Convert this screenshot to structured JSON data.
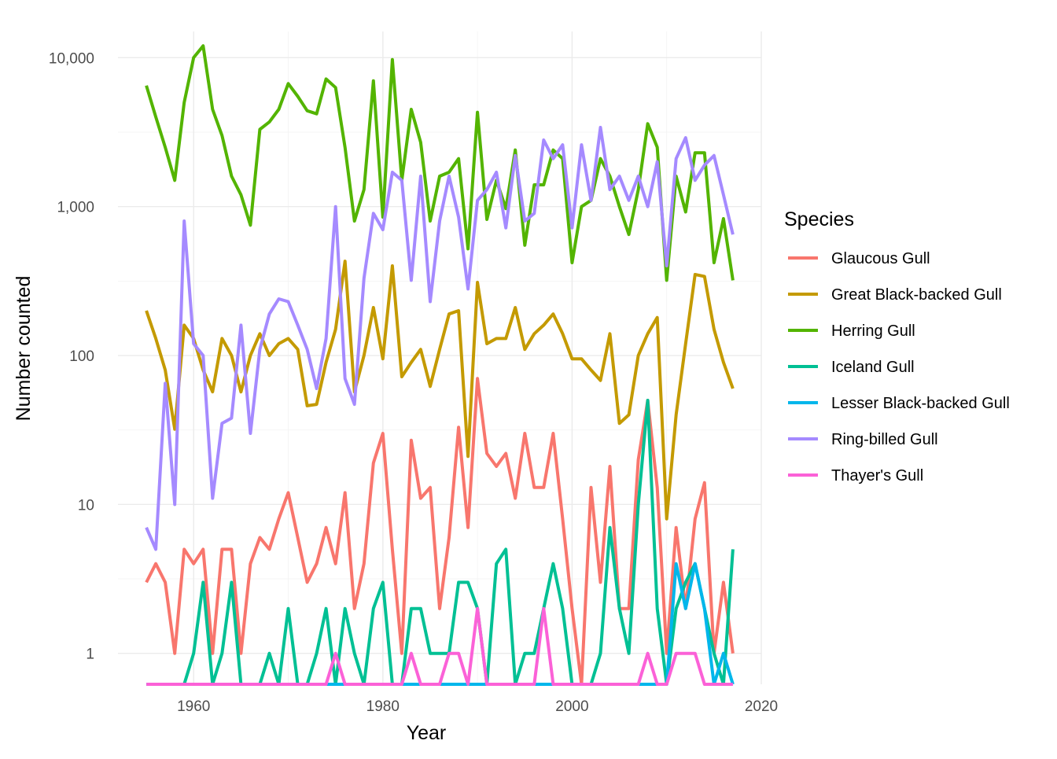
{
  "chart_data": {
    "type": "line",
    "xlabel": "Year",
    "ylabel": "Number counted",
    "yscale": "log10",
    "xlim": [
      1952,
      2020
    ],
    "ylim": [
      0.62,
      15000
    ],
    "x_ticks": [
      1960,
      1980,
      2000,
      2020
    ],
    "x_tick_labels": [
      "1960",
      "1980",
      "2000",
      "2020"
    ],
    "y_ticks": [
      1,
      10,
      100,
      1000,
      10000
    ],
    "y_tick_labels": [
      "1",
      "10",
      "100",
      "1,000",
      "10,000"
    ],
    "grid": true,
    "legend": {
      "title": "Species",
      "placement": "right"
    },
    "x": [
      1955,
      1956,
      1957,
      1958,
      1959,
      1960,
      1961,
      1962,
      1963,
      1964,
      1965,
      1966,
      1967,
      1968,
      1969,
      1970,
      1971,
      1972,
      1973,
      1974,
      1975,
      1976,
      1977,
      1978,
      1979,
      1980,
      1981,
      1982,
      1983,
      1984,
      1985,
      1986,
      1987,
      1988,
      1989,
      1990,
      1991,
      1992,
      1993,
      1994,
      1995,
      1996,
      1997,
      1998,
      1999,
      2000,
      2001,
      2002,
      2003,
      2004,
      2005,
      2006,
      2007,
      2008,
      2009,
      2010,
      2011,
      2012,
      2013,
      2014,
      2015,
      2016,
      2017
    ],
    "series": [
      {
        "name": "Glaucous Gull",
        "color": "#F8766D",
        "values": [
          3,
          4,
          3,
          1,
          5,
          4,
          5,
          1,
          5,
          5,
          1,
          4,
          6,
          5,
          8,
          12,
          6,
          3,
          4,
          7,
          4,
          12,
          2,
          4,
          19,
          30,
          5,
          1,
          27,
          11,
          13,
          2,
          6,
          33,
          7,
          70,
          22,
          18,
          22,
          11,
          30,
          13,
          13,
          30,
          8,
          2,
          0,
          13,
          3,
          18,
          2,
          2,
          20,
          50,
          13,
          1,
          7,
          2,
          8,
          14,
          1,
          3,
          1
        ]
      },
      {
        "name": "Great Black-backed Gull",
        "color": "#C49A00",
        "values": [
          200,
          130,
          80,
          32,
          160,
          130,
          80,
          57,
          130,
          100,
          57,
          100,
          140,
          100,
          120,
          130,
          110,
          46,
          47,
          90,
          150,
          430,
          57,
          100,
          210,
          95,
          400,
          72,
          90,
          110,
          62,
          110,
          190,
          200,
          21,
          310,
          120,
          130,
          130,
          210,
          110,
          140,
          160,
          190,
          140,
          95,
          95,
          80,
          68,
          140,
          35,
          40,
          100,
          140,
          180,
          8,
          40,
          120,
          350,
          340,
          150,
          90,
          60
        ]
      },
      {
        "name": "Herring Gull",
        "color": "#53B400",
        "values": [
          6500,
          4000,
          2500,
          1500,
          5000,
          10000,
          12000,
          4500,
          3000,
          1600,
          1200,
          750,
          3300,
          3700,
          4500,
          6700,
          5500,
          4400,
          4200,
          7200,
          6300,
          2500,
          800,
          1300,
          7000,
          850,
          9700,
          1500,
          4500,
          2700,
          800,
          1600,
          1700,
          2100,
          520,
          4300,
          820,
          1500,
          970,
          2400,
          550,
          1400,
          1400,
          2400,
          2100,
          420,
          1000,
          1100,
          2100,
          1600,
          1000,
          650,
          1300,
          3600,
          2500,
          320,
          1600,
          920,
          2300,
          2300,
          420,
          830,
          320
        ]
      },
      {
        "name": "Iceland Gull",
        "color": "#00C094",
        "values": [
          0,
          0,
          0,
          0,
          0,
          1,
          3,
          0,
          1,
          3,
          0,
          0,
          0,
          1,
          0,
          2,
          0,
          0,
          1,
          2,
          0,
          2,
          1,
          0,
          2,
          3,
          0,
          0,
          2,
          2,
          1,
          1,
          1,
          3,
          3,
          2,
          0,
          4,
          5,
          0,
          1,
          1,
          2,
          4,
          2,
          0,
          0,
          0,
          1,
          7,
          2,
          1,
          10,
          50,
          2,
          0,
          2,
          3,
          4,
          2,
          1,
          0,
          5
        ]
      },
      {
        "name": "Lesser Black-backed Gull",
        "color": "#00B6EB",
        "values": [
          0,
          0,
          0,
          0,
          0,
          0,
          0,
          0,
          0,
          0,
          0,
          0,
          0,
          0,
          0,
          0,
          0,
          0,
          0,
          0,
          0,
          0,
          0,
          0,
          0,
          0,
          0,
          0,
          0,
          0,
          0,
          0,
          0,
          0,
          0,
          0,
          0,
          0,
          0,
          0,
          0,
          0,
          0,
          0,
          0,
          0,
          0,
          0,
          0,
          0,
          0,
          0,
          0,
          0,
          0,
          0,
          4,
          2,
          4,
          2,
          0,
          1,
          0
        ]
      },
      {
        "name": "Ring-billed Gull",
        "color": "#A58AFF",
        "values": [
          7,
          5,
          65,
          10,
          800,
          120,
          100,
          11,
          35,
          38,
          160,
          30,
          110,
          190,
          240,
          230,
          160,
          110,
          60,
          130,
          1000,
          70,
          47,
          330,
          900,
          700,
          1700,
          1500,
          320,
          1600,
          230,
          800,
          1600,
          850,
          280,
          1100,
          1300,
          1700,
          720,
          2200,
          800,
          900,
          2800,
          2100,
          2600,
          720,
          2600,
          1100,
          3400,
          1300,
          1600,
          1100,
          1600,
          1000,
          2000,
          400,
          2100,
          2900,
          1500,
          1900,
          2200,
          1200,
          650
        ]
      },
      {
        "name": "Thayer's Gull",
        "color": "#FB61D7",
        "values": [
          0,
          0,
          0,
          0,
          0,
          0,
          0,
          0,
          0,
          0,
          0,
          0,
          0,
          0,
          0,
          0,
          0,
          0,
          0,
          0,
          1,
          0,
          0,
          0,
          0,
          0,
          0,
          0,
          1,
          0,
          0,
          0,
          1,
          1,
          0,
          2,
          0,
          0,
          0,
          0,
          0,
          0,
          2,
          0,
          0,
          0,
          0,
          0,
          0,
          0,
          0,
          0,
          0,
          1,
          0,
          0,
          1,
          1,
          1,
          0,
          0,
          0,
          0
        ]
      }
    ]
  }
}
